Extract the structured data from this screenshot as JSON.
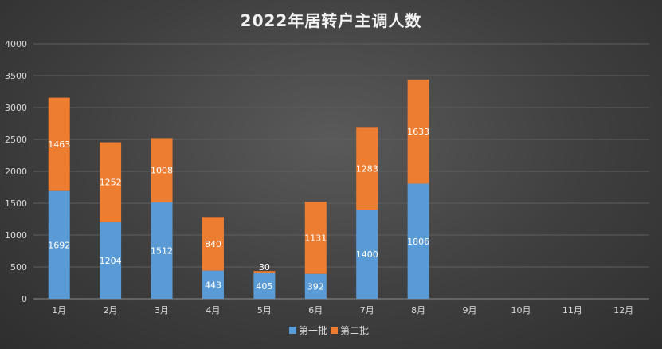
{
  "chart_data": {
    "type": "bar",
    "stacked": true,
    "title": "2022年居转户主调人数",
    "xlabel": "",
    "ylabel": "",
    "categories": [
      "1月",
      "2月",
      "3月",
      "4月",
      "5月",
      "6月",
      "7月",
      "8月",
      "9月",
      "10月",
      "11月",
      "12月"
    ],
    "series": [
      {
        "name": "第一批",
        "color": "#5b9bd5",
        "values": [
          1692,
          1204,
          1512,
          443,
          405,
          392,
          1400,
          1806,
          null,
          null,
          null,
          null
        ]
      },
      {
        "name": "第二批",
        "color": "#ed7d31",
        "values": [
          1463,
          1252,
          1008,
          840,
          30,
          1131,
          1283,
          1633,
          null,
          null,
          null,
          null
        ]
      }
    ],
    "ylim": [
      0,
      4000
    ],
    "yticks": [
      0,
      500,
      1000,
      1500,
      2000,
      2500,
      3000,
      3500,
      4000
    ],
    "grid": true,
    "legend": "bottom"
  }
}
